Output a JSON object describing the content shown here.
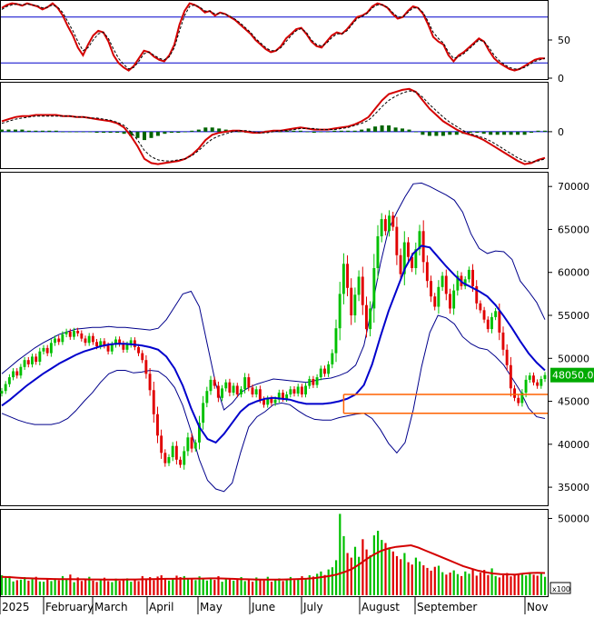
{
  "chart_data": [
    {
      "type": "line",
      "panel": "stochastic",
      "ylim": [
        0,
        100
      ],
      "y_ticks": [
        0,
        50
      ],
      "reference_lines": [
        20,
        80
      ],
      "series": [
        {
          "key": "k",
          "color": "#d40000",
          "values": [
            92,
            96,
            98,
            97,
            95,
            98,
            96,
            94,
            90,
            93,
            98,
            92,
            82,
            68,
            56,
            40,
            30,
            44,
            56,
            62,
            60,
            48,
            30,
            20,
            14,
            10,
            16,
            26,
            36,
            34,
            28,
            24,
            22,
            30,
            44,
            70,
            88,
            98,
            96,
            92,
            86,
            88,
            82,
            86,
            84,
            80,
            76,
            70,
            64,
            58,
            50,
            44,
            38,
            34,
            36,
            42,
            52,
            58,
            64,
            66,
            58,
            48,
            42,
            40,
            48,
            56,
            60,
            58,
            64,
            72,
            80,
            82,
            86,
            94,
            98,
            96,
            92,
            84,
            78,
            80,
            88,
            94,
            92,
            84,
            70,
            54,
            48,
            44,
            30,
            22,
            30,
            34,
            40,
            46,
            52,
            48,
            36,
            26,
            20,
            16,
            12,
            10,
            12,
            16,
            20,
            24,
            26,
            26
          ]
        },
        {
          "key": "d",
          "color": "#000000",
          "values": [
            90,
            94,
            96,
            97,
            96,
            97,
            96,
            95,
            92,
            93,
            96,
            93,
            86,
            74,
            62,
            48,
            36,
            40,
            50,
            58,
            60,
            52,
            38,
            26,
            18,
            12,
            14,
            22,
            32,
            34,
            30,
            26,
            24,
            28,
            40,
            62,
            82,
            94,
            96,
            93,
            88,
            88,
            84,
            85,
            84,
            81,
            77,
            72,
            66,
            60,
            52,
            46,
            40,
            36,
            36,
            40,
            48,
            56,
            62,
            65,
            60,
            50,
            44,
            42,
            46,
            53,
            58,
            58,
            62,
            70,
            78,
            81,
            85,
            92,
            96,
            96,
            93,
            86,
            80,
            80,
            86,
            92,
            92,
            86,
            74,
            60,
            52,
            46,
            34,
            26,
            28,
            32,
            38,
            44,
            50,
            48,
            40,
            30,
            23,
            18,
            14,
            12,
            12,
            14,
            18,
            22,
            24,
            26
          ]
        }
      ]
    },
    {
      "type": "line",
      "panel": "macd",
      "y_ticks": [
        0
      ],
      "series": [
        {
          "key": "macd",
          "color": "#d40000",
          "values": [
            10,
            12,
            14,
            15,
            15,
            16,
            16,
            16,
            16,
            15,
            15,
            14,
            14,
            13,
            12,
            11,
            10,
            8,
            4,
            -4,
            -14,
            -26,
            -30,
            -31,
            -30,
            -29,
            -28,
            -26,
            -22,
            -16,
            -8,
            -3,
            -1,
            0,
            1,
            1,
            0,
            -1,
            -1,
            0,
            1,
            1,
            2,
            3,
            4,
            3,
            2,
            2,
            2,
            3,
            4,
            5,
            7,
            10,
            14,
            22,
            30,
            36,
            38,
            40,
            41,
            38,
            30,
            22,
            16,
            10,
            6,
            2,
            -1,
            -3,
            -5,
            -8,
            -12,
            -16,
            -20,
            -24,
            -28,
            -31,
            -30,
            -27,
            -25
          ]
        },
        {
          "key": "signal",
          "color": "#000000",
          "values": [
            8,
            10,
            12,
            13,
            14,
            15,
            15,
            15,
            15,
            15,
            15,
            14,
            14,
            13,
            13,
            12,
            11,
            9,
            6,
            0,
            -8,
            -18,
            -24,
            -27,
            -28,
            -28,
            -27,
            -26,
            -23,
            -18,
            -12,
            -7,
            -4,
            -2,
            0,
            1,
            1,
            0,
            -1,
            -1,
            0,
            1,
            1,
            2,
            3,
            3,
            3,
            2,
            2,
            2,
            3,
            4,
            6,
            8,
            11,
            17,
            24,
            30,
            34,
            37,
            39,
            38,
            33,
            26,
            20,
            14,
            9,
            5,
            1,
            -2,
            -4,
            -6,
            -9,
            -13,
            -17,
            -21,
            -25,
            -28,
            -29,
            -28,
            -26
          ]
        },
        {
          "key": "histogram",
          "color": "#006400",
          "values": [
            2,
            2,
            2,
            2,
            1,
            1,
            1,
            1,
            1,
            0,
            0,
            0,
            0,
            0,
            -1,
            -1,
            -1,
            -1,
            -2,
            -4,
            -6,
            -8,
            -6,
            -4,
            -2,
            -1,
            -1,
            0,
            1,
            2,
            4,
            4,
            3,
            2,
            1,
            0,
            -1,
            -1,
            0,
            1,
            1,
            0,
            1,
            1,
            1,
            0,
            -1,
            0,
            0,
            1,
            1,
            1,
            1,
            2,
            3,
            5,
            6,
            6,
            4,
            3,
            2,
            0,
            -3,
            -4,
            -4,
            -4,
            -3,
            -3,
            -2,
            -1,
            -1,
            -2,
            -3,
            -3,
            -3,
            -3,
            -3,
            -3,
            -1,
            1,
            1
          ]
        }
      ]
    },
    {
      "type": "candlestick",
      "panel": "price",
      "ylim": [
        33000,
        71500
      ],
      "y_ticks": [
        35000,
        40000,
        45000,
        50000,
        55000,
        60000,
        65000,
        70000
      ],
      "x_labels": [
        "2025",
        "February",
        "March",
        "April",
        "May",
        "June",
        "July",
        "August",
        "September",
        "Nov"
      ],
      "last_price_label": "48050.00",
      "last_price": 48050,
      "support_zone": {
        "upper": 45800,
        "lower": 43600,
        "start_index": 90
      },
      "colors": {
        "up": "#00c000",
        "down": "#e00000",
        "ma": "#0000cc",
        "band": "#00008b",
        "zone": "#ff6000"
      },
      "close": [
        46200,
        47000,
        47800,
        48500,
        48000,
        49000,
        49800,
        49300,
        50200,
        49600,
        50800,
        51200,
        50600,
        51800,
        52300,
        51900,
        52800,
        53100,
        52500,
        53200,
        52900,
        52300,
        51800,
        52600,
        51900,
        51400,
        52000,
        51500,
        50800,
        51600,
        52200,
        51700,
        51000,
        51600,
        52100,
        51300,
        50600,
        49800,
        48200,
        46300,
        43500,
        41000,
        39000,
        37800,
        38500,
        39800,
        38200,
        37600,
        39200,
        40800,
        39500,
        40200,
        42500,
        44800,
        46200,
        47500,
        46800,
        45400,
        46500,
        47200,
        46000,
        46800,
        45800,
        46400,
        47800,
        46600,
        45800,
        46400,
        45200,
        44600,
        45300,
        44800,
        45200,
        46000,
        45300,
        45800,
        46400,
        45900,
        46700,
        45800,
        46800,
        47600,
        46900,
        47800,
        48800,
        48200,
        49300,
        50600,
        53500,
        57500,
        61000,
        58200,
        55000,
        57400,
        59500,
        56200,
        53400,
        55800,
        60500,
        64200,
        66200,
        64800,
        66600,
        65300,
        62000,
        59800,
        63500,
        61800,
        60500,
        62700,
        64800,
        61200,
        59000,
        57200,
        56000,
        58300,
        59600,
        57500,
        55800,
        57900,
        59600,
        58400,
        59200,
        60300,
        58400,
        56400,
        55600,
        54500,
        53400,
        54800,
        55500,
        53000,
        51000,
        49200,
        46500,
        45400,
        44800,
        46000,
        47500,
        48000,
        47200,
        46800,
        47600,
        48050
      ],
      "upper_band": [
        48200,
        49000,
        49800,
        50500,
        51200,
        51800,
        52300,
        52800,
        53100,
        53400,
        53500,
        53600,
        53600,
        53700,
        53600,
        53600,
        53500,
        53400,
        53300,
        53500,
        54500,
        56000,
        57500,
        57800,
        56000,
        51500,
        47000,
        44000,
        44800,
        46000,
        46600,
        47000,
        47300,
        47600,
        47500,
        47400,
        47300,
        47200,
        47400,
        47600,
        47700,
        48000,
        48400,
        49200,
        51500,
        56000,
        61000,
        65000,
        67000,
        68800,
        70300,
        70400,
        70000,
        69500,
        69000,
        68400,
        67000,
        64500,
        62800,
        62200,
        62500,
        62400,
        61500,
        59000,
        57800,
        56500,
        54500
      ],
      "lower_band": [
        43600,
        43200,
        42800,
        42500,
        42300,
        42300,
        42300,
        42500,
        43000,
        43900,
        45000,
        46000,
        47200,
        48200,
        48600,
        48600,
        48300,
        48400,
        48600,
        48500,
        47800,
        46600,
        44500,
        41500,
        38200,
        35800,
        34800,
        34500,
        35500,
        39000,
        42000,
        43200,
        43800,
        44600,
        44800,
        44600,
        43900,
        43300,
        42900,
        42800,
        42800,
        43100,
        43300,
        43500,
        43600,
        43000,
        41700,
        40100,
        39000,
        40200,
        44000,
        49000,
        53000,
        55000,
        54700,
        54000,
        52500,
        51700,
        51200,
        51000,
        50200,
        49200,
        47700,
        46200,
        44200,
        43200,
        43000
      ],
      "moving_average": [
        44500,
        45200,
        46000,
        46800,
        47500,
        48200,
        48800,
        49400,
        49900,
        50400,
        50800,
        51100,
        51400,
        51600,
        51700,
        51700,
        51600,
        51500,
        51300,
        51000,
        50200,
        48800,
        46800,
        44200,
        42000,
        40600,
        40200,
        41200,
        42500,
        43800,
        44600,
        45000,
        45300,
        45400,
        45300,
        45200,
        44900,
        44700,
        44700,
        44700,
        44800,
        45000,
        45300,
        45800,
        46900,
        49300,
        52500,
        55500,
        58000,
        60500,
        62200,
        63100,
        62900,
        61800,
        60700,
        59700,
        58800,
        58300,
        57800,
        57200,
        56200,
        54900,
        53500,
        52000,
        50600,
        49500,
        48600
      ]
    },
    {
      "type": "bar",
      "panel": "volume",
      "ylim": [
        0,
        55000
      ],
      "y_ticks": [
        50000
      ],
      "unit_label": "x100",
      "colors": {
        "up": "#00c000",
        "down": "#e00000",
        "ma": "#d40000"
      },
      "values": [
        13000,
        11500,
        12500,
        9000,
        9800,
        10200,
        11800,
        9500,
        10500,
        12000,
        9000,
        8800,
        10500,
        9200,
        11000,
        9800,
        12500,
        10400,
        13500,
        8500,
        11600,
        9300,
        10800,
        12000,
        9500,
        8700,
        10100,
        11400,
        9200,
        8600,
        10800,
        9400,
        9900,
        11000,
        8800,
        10500,
        9200,
        12500,
        10700,
        11800,
        9900,
        12200,
        13000,
        10400,
        9600,
        11200,
        12800,
        11800,
        12500,
        10500,
        11000,
        9900,
        12300,
        10800,
        9600,
        11400,
        10000,
        12400,
        8800,
        10700,
        11200,
        9500,
        10300,
        11800,
        9200,
        10100,
        8900,
        11600,
        10400,
        9700,
        12000,
        8900,
        10200,
        11000,
        9300,
        10600,
        11900,
        9800,
        10900,
        12400,
        11200,
        13000,
        12200,
        14000,
        15500,
        13200,
        16800,
        18200,
        22800,
        53000,
        38500,
        27500,
        24500,
        31500,
        25000,
        36500,
        29800,
        26000,
        39000,
        42000,
        36000,
        34000,
        30500,
        28500,
        25500,
        23500,
        27500,
        21500,
        20000,
        24500,
        22000,
        19500,
        17800,
        16000,
        18500,
        19200,
        15000,
        13500,
        14800,
        16200,
        13800,
        12500,
        15500,
        14000,
        17000,
        12800,
        14800,
        16500,
        13200,
        17500,
        12500,
        11600,
        13000,
        14500,
        12300,
        13600,
        13900,
        14200,
        12900,
        14700,
        13400,
        12800,
        14200,
        12000
      ],
      "ma_values": [
        12000,
        11800,
        11500,
        11200,
        11000,
        10800,
        10700,
        10600,
        10500,
        10500,
        10400,
        10400,
        10300,
        10300,
        10200,
        10200,
        10200,
        10300,
        10300,
        10400,
        10500,
        10600,
        10700,
        10700,
        10800,
        10800,
        10900,
        10900,
        11000,
        11000,
        10900,
        10700,
        10500,
        10400,
        10300,
        10200,
        10200,
        10200,
        10300,
        10400,
        10600,
        10800,
        11200,
        11800,
        12500,
        13500,
        15000,
        17000,
        20000,
        23500,
        26500,
        29000,
        30500,
        31500,
        32000,
        32500,
        31000,
        29000,
        27000,
        25000,
        23000,
        21000,
        19000,
        17500,
        16000,
        15000,
        14200,
        13800,
        13600,
        13500,
        14000,
        14500,
        14600,
        14500
      ]
    }
  ]
}
